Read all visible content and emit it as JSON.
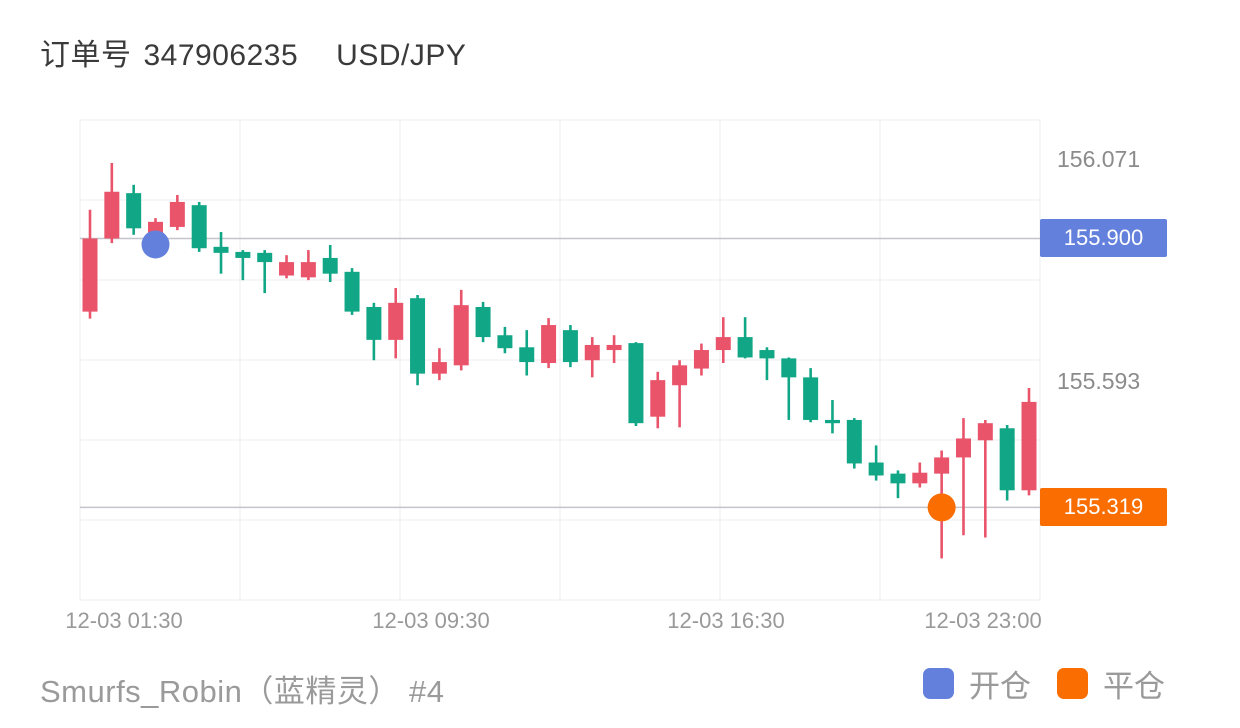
{
  "header": {
    "order_label": "订单号",
    "order_number": "347906235",
    "symbol": "USD/JPY"
  },
  "footer": {
    "trader": "Smurfs_Robin（蓝精灵） #4",
    "legend": [
      {
        "label": "开仓",
        "color": "#6380DC"
      },
      {
        "label": "平仓",
        "color": "#FA6D00"
      }
    ]
  },
  "chart_data": {
    "type": "candlestick",
    "symbol": "USD/JPY",
    "ylim": [
      155.119,
      156.156
    ],
    "grid": true,
    "colors": {
      "bullish": "#E9546B",
      "bearish": "#11A685",
      "grid": "#ededf1",
      "price_line": "#c4c4ca"
    },
    "x_tick_labels": [
      "12-03 01:30",
      "12-03 09:30",
      "12-03 16:30",
      "12-03 23:00"
    ],
    "float_labels": [
      {
        "label": "156.071",
        "price": 156.071
      },
      {
        "label": "155.593",
        "price": 155.593
      }
    ],
    "price_lines": [
      {
        "label": "155.900",
        "price": 155.9,
        "badge_color": "#6380DC",
        "role": "open-position"
      },
      {
        "label": "155.319",
        "price": 155.319,
        "badge_color": "#FA6D00",
        "role": "close-position"
      }
    ],
    "markers": [
      {
        "label": "开仓",
        "candle_index": 3,
        "price": 155.9,
        "color": "#6380DC"
      },
      {
        "label": "平仓",
        "candle_index": 39,
        "price": 155.319,
        "color": "#FA6D00"
      }
    ],
    "candles": [
      {
        "o": 155.742,
        "h": 155.962,
        "l": 155.727,
        "c": 155.9
      },
      {
        "o": 155.9,
        "h": 156.063,
        "l": 155.89,
        "c": 156.001
      },
      {
        "o": 155.998,
        "h": 156.016,
        "l": 155.908,
        "c": 155.922
      },
      {
        "o": 155.897,
        "h": 155.944,
        "l": 155.886,
        "c": 155.936
      },
      {
        "o": 155.925,
        "h": 155.994,
        "l": 155.918,
        "c": 155.979
      },
      {
        "o": 155.972,
        "h": 155.979,
        "l": 155.871,
        "c": 155.879
      },
      {
        "o": 155.882,
        "h": 155.914,
        "l": 155.824,
        "c": 155.869
      },
      {
        "o": 155.871,
        "h": 155.875,
        "l": 155.81,
        "c": 155.858
      },
      {
        "o": 155.869,
        "h": 155.875,
        "l": 155.782,
        "c": 155.849
      },
      {
        "o": 155.82,
        "h": 155.864,
        "l": 155.814,
        "c": 155.849
      },
      {
        "o": 155.816,
        "h": 155.875,
        "l": 155.81,
        "c": 155.849
      },
      {
        "o": 155.858,
        "h": 155.886,
        "l": 155.806,
        "c": 155.824
      },
      {
        "o": 155.828,
        "h": 155.836,
        "l": 155.735,
        "c": 155.742
      },
      {
        "o": 155.752,
        "h": 155.761,
        "l": 155.637,
        "c": 155.681
      },
      {
        "o": 155.681,
        "h": 155.793,
        "l": 155.641,
        "c": 155.761
      },
      {
        "o": 155.771,
        "h": 155.778,
        "l": 155.583,
        "c": 155.608
      },
      {
        "o": 155.608,
        "h": 155.663,
        "l": 155.594,
        "c": 155.633
      },
      {
        "o": 155.626,
        "h": 155.789,
        "l": 155.615,
        "c": 155.756
      },
      {
        "o": 155.752,
        "h": 155.763,
        "l": 155.676,
        "c": 155.687
      },
      {
        "o": 155.691,
        "h": 155.709,
        "l": 155.652,
        "c": 155.663
      },
      {
        "o": 155.665,
        "h": 155.702,
        "l": 155.604,
        "c": 155.633
      },
      {
        "o": 155.631,
        "h": 155.728,
        "l": 155.62,
        "c": 155.713
      },
      {
        "o": 155.702,
        "h": 155.713,
        "l": 155.622,
        "c": 155.633
      },
      {
        "o": 155.637,
        "h": 155.687,
        "l": 155.6,
        "c": 155.67
      },
      {
        "o": 155.659,
        "h": 155.691,
        "l": 155.631,
        "c": 155.67
      },
      {
        "o": 155.674,
        "h": 155.676,
        "l": 155.495,
        "c": 155.501
      },
      {
        "o": 155.515,
        "h": 155.612,
        "l": 155.49,
        "c": 155.594
      },
      {
        "o": 155.583,
        "h": 155.637,
        "l": 155.492,
        "c": 155.626
      },
      {
        "o": 155.619,
        "h": 155.673,
        "l": 155.604,
        "c": 155.659
      },
      {
        "o": 155.659,
        "h": 155.73,
        "l": 155.631,
        "c": 155.687
      },
      {
        "o": 155.687,
        "h": 155.73,
        "l": 155.641,
        "c": 155.643
      },
      {
        "o": 155.659,
        "h": 155.665,
        "l": 155.594,
        "c": 155.641
      },
      {
        "o": 155.641,
        "h": 155.643,
        "l": 155.508,
        "c": 155.6
      },
      {
        "o": 155.6,
        "h": 155.62,
        "l": 155.503,
        "c": 155.508
      },
      {
        "o": 155.508,
        "h": 155.551,
        "l": 155.479,
        "c": 155.501
      },
      {
        "o": 155.508,
        "h": 155.512,
        "l": 155.403,
        "c": 155.414
      },
      {
        "o": 155.416,
        "h": 155.453,
        "l": 155.377,
        "c": 155.388
      },
      {
        "o": 155.392,
        "h": 155.399,
        "l": 155.339,
        "c": 155.371
      },
      {
        "o": 155.371,
        "h": 155.416,
        "l": 155.362,
        "c": 155.394
      },
      {
        "o": 155.392,
        "h": 155.442,
        "l": 155.209,
        "c": 155.427
      },
      {
        "o": 155.427,
        "h": 155.512,
        "l": 155.259,
        "c": 155.468
      },
      {
        "o": 155.464,
        "h": 155.508,
        "l": 155.254,
        "c": 155.501
      },
      {
        "o": 155.49,
        "h": 155.497,
        "l": 155.334,
        "c": 155.356
      },
      {
        "o": 155.356,
        "h": 155.577,
        "l": 155.345,
        "c": 155.547
      }
    ]
  }
}
